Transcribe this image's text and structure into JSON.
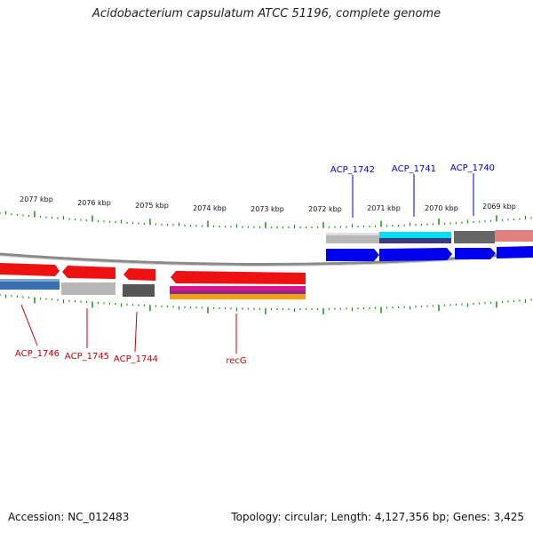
{
  "header": {
    "title": "Acidobacterium capsulatum ATCC 51196, complete genome"
  },
  "footer": {
    "accession": "Accession: NC_012483",
    "summary": "Topology: circular; Length: 4,127,356 bp; Genes: 3,425"
  },
  "colors": {
    "forward_label": "#0000cc",
    "reverse_label": "#cc0000",
    "ticks": "#1f8a1f",
    "backbone": "#8a8a8a"
  },
  "scale_labels": [
    "2077 kbp",
    "2076 kbp",
    "2075 kbp",
    "2074 kbp",
    "2073 kbp",
    "2072 kbp",
    "2071 kbp",
    "2070 kbp",
    "2069 kbp"
  ],
  "genes_top": [
    {
      "name": "ACP_1742",
      "strand": "forward"
    },
    {
      "name": "ACP_1741",
      "strand": "forward"
    },
    {
      "name": "ACP_1740",
      "strand": "forward"
    }
  ],
  "genes_bottom": [
    {
      "name": "ACP_1746",
      "strand": "reverse"
    },
    {
      "name": "ACP_1745",
      "strand": "reverse"
    },
    {
      "name": "ACP_1744",
      "strand": "reverse"
    },
    {
      "name": "recG",
      "strand": "reverse"
    }
  ]
}
